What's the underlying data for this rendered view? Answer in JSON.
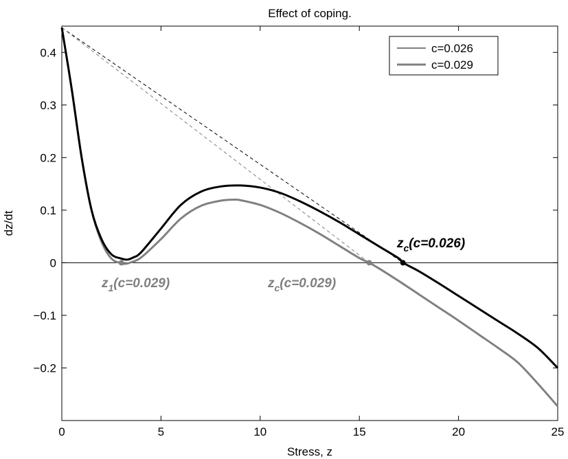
{
  "chart_data": {
    "type": "line",
    "title": "Effect of coping.",
    "xlabel": "Stress, z",
    "ylabel": "dz/dt",
    "xlim": [
      0,
      25
    ],
    "ylim": [
      -0.3,
      0.45
    ],
    "xticks": [
      0,
      5,
      10,
      15,
      20,
      25
    ],
    "xtick_labels": [
      "0",
      "5",
      "10",
      "15",
      "20",
      "25"
    ],
    "yticks": [
      -0.2,
      -0.1,
      0,
      0.1,
      0.2,
      0.3,
      0.4
    ],
    "ytick_labels": [
      "−0.2",
      "−0.1",
      "0",
      "0.1",
      "0.2",
      "0.3",
      "0.4"
    ],
    "grid": false,
    "legend_position": "top-right",
    "legend": [
      {
        "label": "c=0.026",
        "color": "#000000"
      },
      {
        "label": "c=0.029",
        "color": "#808080"
      }
    ],
    "series": [
      {
        "name": "c=0.026",
        "color": "#000000",
        "x": [
          0,
          0.5,
          1,
          1.5,
          2,
          2.5,
          3,
          3.3,
          3.6,
          4,
          5,
          6,
          7,
          8,
          9,
          10,
          11,
          12,
          13,
          14,
          15,
          16,
          17,
          17.2,
          18,
          19,
          20,
          21,
          22,
          23,
          24,
          25
        ],
        "y": [
          0.447,
          0.33,
          0.2,
          0.1,
          0.045,
          0.016,
          0.008,
          0.006,
          0.01,
          0.02,
          0.065,
          0.11,
          0.135,
          0.145,
          0.147,
          0.143,
          0.133,
          0.117,
          0.098,
          0.077,
          0.054,
          0.031,
          0.008,
          0.0,
          -0.016,
          -0.039,
          -0.063,
          -0.087,
          -0.111,
          -0.135,
          -0.162,
          -0.2
        ]
      },
      {
        "name": "c=0.029",
        "color": "#808080",
        "x": [
          0,
          0.5,
          1,
          1.5,
          2,
          2.5,
          3,
          3.2,
          3.5,
          4,
          5,
          6,
          7,
          8,
          8.7,
          9,
          10,
          11,
          12,
          13,
          14,
          15,
          15.5,
          16,
          17,
          18,
          19,
          20,
          21,
          22,
          23,
          24,
          25
        ],
        "y": [
          0.447,
          0.33,
          0.2,
          0.1,
          0.04,
          0.008,
          -0.001,
          -0.002,
          0.001,
          0.01,
          0.045,
          0.084,
          0.108,
          0.118,
          0.12,
          0.119,
          0.11,
          0.095,
          0.076,
          0.055,
          0.032,
          0.009,
          0.0,
          -0.011,
          -0.035,
          -0.06,
          -0.085,
          -0.11,
          -0.136,
          -0.162,
          -0.19,
          -0.23,
          -0.273
        ]
      }
    ],
    "tangent_lines": [
      {
        "color": "#000000",
        "x": [
          0,
          17.2
        ],
        "y": [
          0.447,
          0.0
        ]
      },
      {
        "color": "#808080",
        "x": [
          0,
          15.5
        ],
        "y": [
          0.447,
          0.0
        ]
      }
    ],
    "marked_points": [
      {
        "color": "#000000",
        "x": 17.2,
        "y": 0.0
      },
      {
        "color": "#808080",
        "x": 15.5,
        "y": 0.0
      },
      {
        "color": "#808080",
        "x": 3.0,
        "y": 0.0
      }
    ],
    "annotations": [
      {
        "main": "z",
        "sub": "c",
        "rest": "(c=0.026)",
        "color": "#000000"
      },
      {
        "main": "z",
        "sub": "1",
        "rest": "(c=0.029)",
        "color": "#808080"
      },
      {
        "main": "z",
        "sub": "c",
        "rest": "(c=0.029)",
        "color": "#808080"
      }
    ]
  }
}
